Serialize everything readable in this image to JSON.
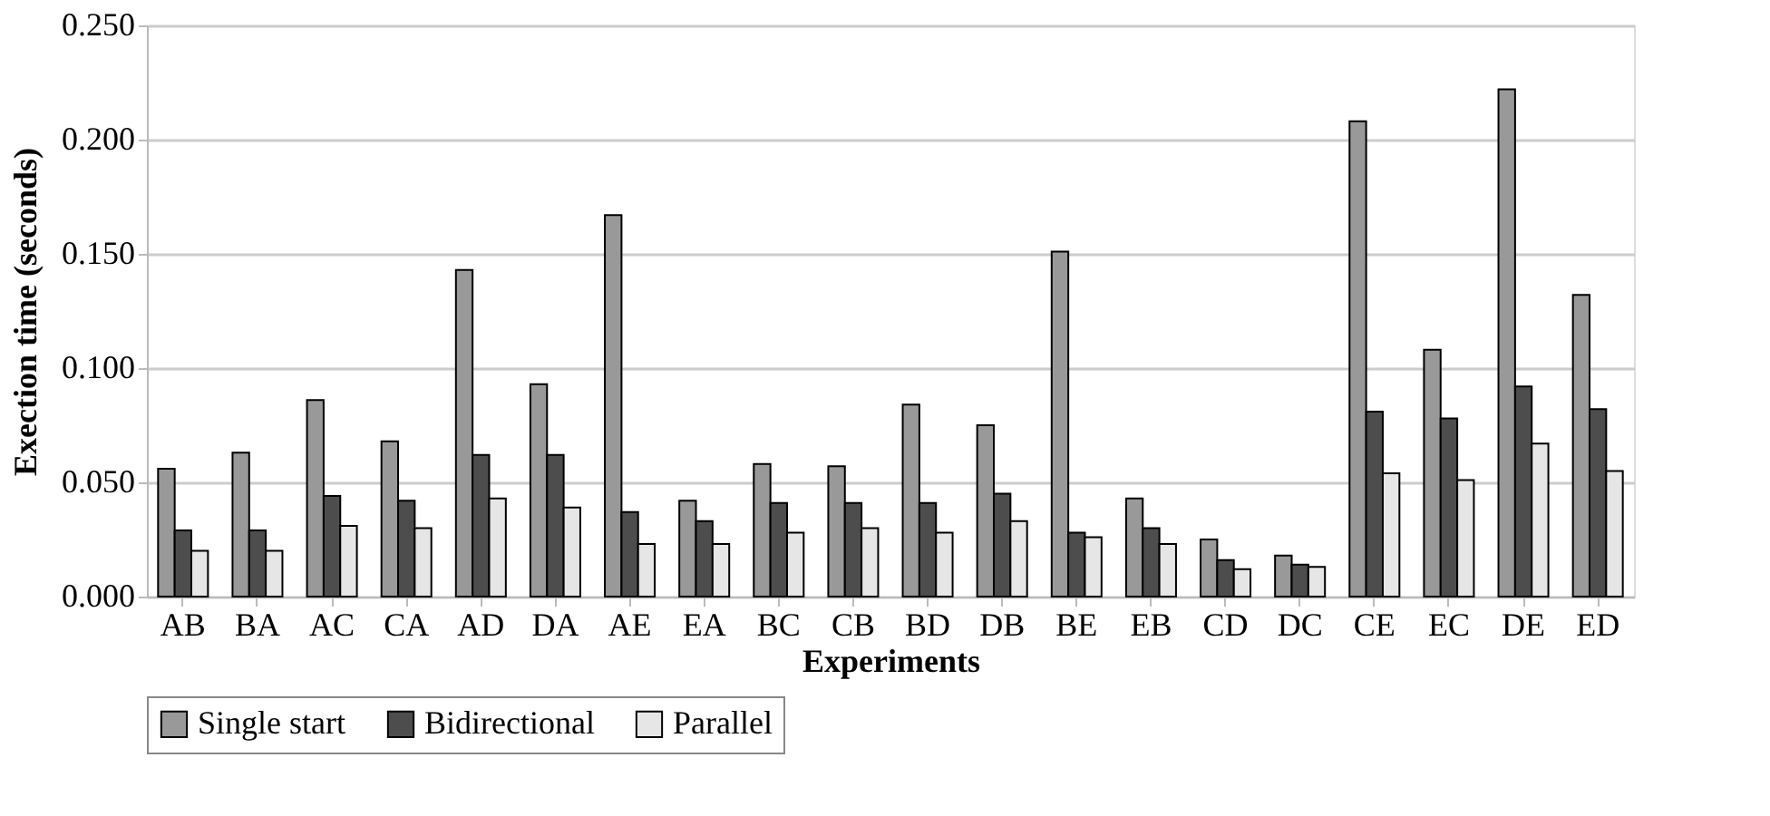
{
  "chart_data": {
    "type": "bar",
    "xlabel": "Experiments",
    "ylabel": "Exection time (seconds)",
    "categories": [
      "AB",
      "BA",
      "AC",
      "CA",
      "AD",
      "DA",
      "AE",
      "EA",
      "BC",
      "CB",
      "BD",
      "DB",
      "BE",
      "EB",
      "CD",
      "DC",
      "CE",
      "EC",
      "DE",
      "ED"
    ],
    "series": [
      {
        "name": "Single start",
        "color": "#999999",
        "values": [
          0.056,
          0.063,
          0.086,
          0.068,
          0.143,
          0.093,
          0.167,
          0.042,
          0.058,
          0.057,
          0.084,
          0.075,
          0.151,
          0.043,
          0.025,
          0.018,
          0.208,
          0.108,
          0.222,
          0.132
        ]
      },
      {
        "name": "Bidirectional",
        "color": "#4d4d4d",
        "values": [
          0.029,
          0.029,
          0.044,
          0.042,
          0.062,
          0.062,
          0.037,
          0.033,
          0.041,
          0.041,
          0.041,
          0.045,
          0.028,
          0.03,
          0.016,
          0.014,
          0.081,
          0.078,
          0.092,
          0.082
        ]
      },
      {
        "name": "Parallel",
        "color": "#e6e6e6",
        "values": [
          0.02,
          0.02,
          0.031,
          0.03,
          0.043,
          0.039,
          0.023,
          0.023,
          0.028,
          0.03,
          0.028,
          0.033,
          0.026,
          0.023,
          0.012,
          0.013,
          0.054,
          0.051,
          0.067,
          0.055
        ]
      }
    ],
    "ylim": [
      0,
      0.25
    ],
    "yticks": [
      {
        "value": 0,
        "label": "0.000"
      },
      {
        "value": 0.05,
        "label": "0.050"
      },
      {
        "value": 0.1,
        "label": "0.100"
      },
      {
        "value": 0.15,
        "label": "0.150"
      },
      {
        "value": 0.2,
        "label": "0.200"
      },
      {
        "value": 0.25,
        "label": "0.250"
      }
    ],
    "grid": "y",
    "legend": "bottom"
  }
}
